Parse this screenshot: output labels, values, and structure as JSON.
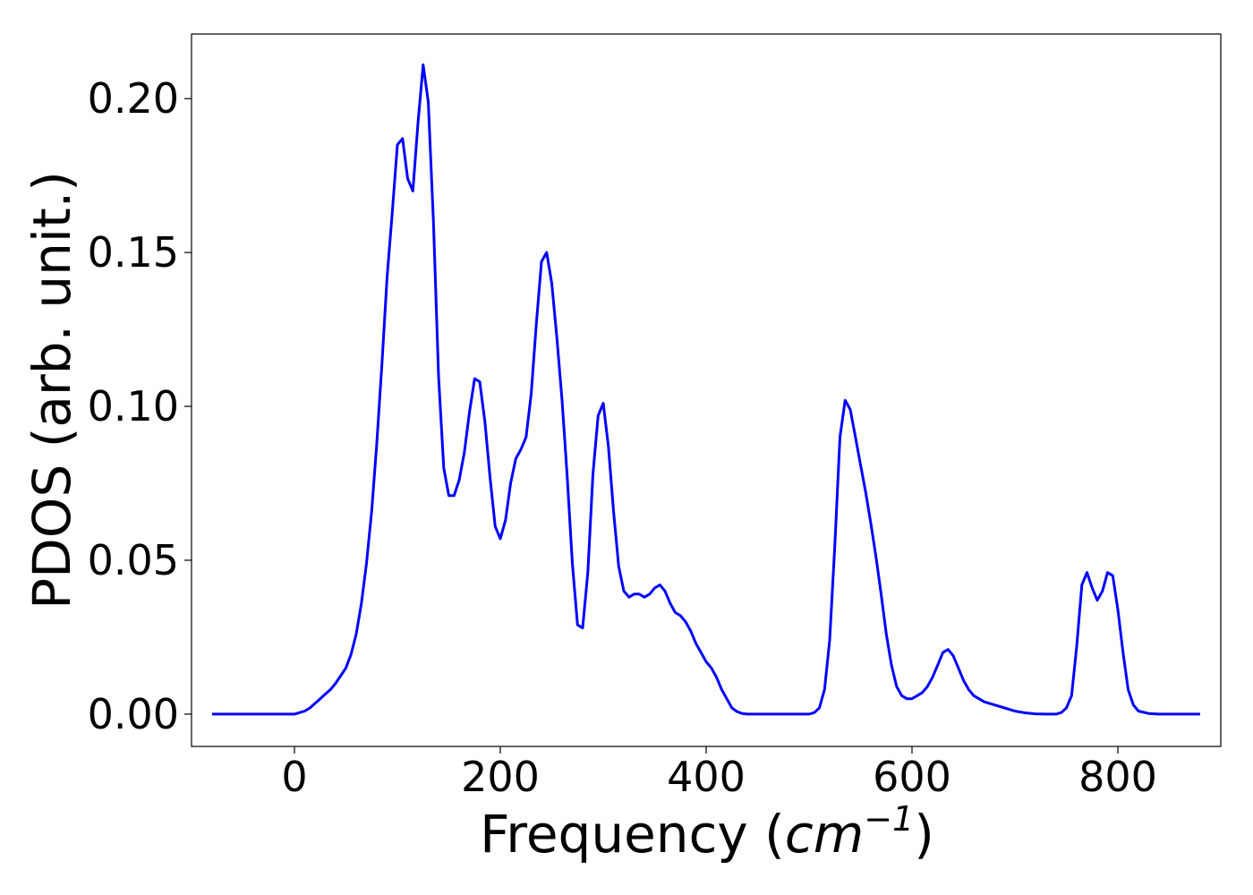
{
  "chart_data": {
    "type": "line",
    "title": "",
    "xlabel": "Frequency (",
    "xlabel_math": "cm",
    "xlabel_exponent": "−1",
    "xlabel_close": ")",
    "ylabel": "PDOS (arb. unit.)",
    "xlim": [
      -100,
      900
    ],
    "ylim": [
      -0.0105,
      0.221
    ],
    "xticks": [
      0,
      200,
      400,
      600,
      800
    ],
    "xtick_labels": [
      "0",
      "200",
      "400",
      "600",
      "800"
    ],
    "yticks": [
      0.0,
      0.05,
      0.1,
      0.15,
      0.2
    ],
    "ytick_labels": [
      "0.00",
      "0.05",
      "0.10",
      "0.15",
      "0.20"
    ],
    "grid": false,
    "legend": "none",
    "series": [
      {
        "color": "#0000ff",
        "x": [
          -80,
          0,
          5,
          10,
          15,
          20,
          25,
          30,
          35,
          40,
          45,
          50,
          55,
          60,
          65,
          70,
          75,
          80,
          85,
          90,
          95,
          100,
          105,
          110,
          115,
          120,
          125,
          130,
          135,
          140,
          145,
          150,
          155,
          160,
          165,
          170,
          175,
          180,
          185,
          190,
          195,
          200,
          205,
          210,
          215,
          220,
          225,
          230,
          235,
          240,
          245,
          250,
          255,
          260,
          265,
          270,
          275,
          280,
          285,
          290,
          295,
          300,
          305,
          310,
          315,
          320,
          325,
          330,
          335,
          340,
          345,
          350,
          355,
          360,
          365,
          370,
          375,
          380,
          385,
          390,
          395,
          400,
          405,
          410,
          415,
          420,
          425,
          430,
          435,
          440,
          450,
          460,
          480,
          500,
          505,
          510,
          515,
          520,
          525,
          530,
          535,
          540,
          545,
          550,
          555,
          560,
          565,
          570,
          575,
          580,
          585,
          590,
          595,
          600,
          605,
          610,
          615,
          620,
          625,
          630,
          635,
          640,
          645,
          650,
          655,
          660,
          665,
          670,
          680,
          690,
          700,
          710,
          720,
          730,
          740,
          745,
          750,
          755,
          760,
          765,
          770,
          775,
          780,
          785,
          790,
          795,
          800,
          805,
          810,
          815,
          820,
          830,
          840,
          860,
          880
        ],
        "y": [
          0.0,
          0.0,
          0.0005,
          0.001,
          0.002,
          0.0035,
          0.005,
          0.0065,
          0.008,
          0.01,
          0.0125,
          0.015,
          0.0195,
          0.026,
          0.036,
          0.049,
          0.066,
          0.088,
          0.114,
          0.142,
          0.163,
          0.185,
          0.187,
          0.174,
          0.17,
          0.192,
          0.211,
          0.199,
          0.16,
          0.11,
          0.08,
          0.071,
          0.071,
          0.076,
          0.085,
          0.098,
          0.109,
          0.108,
          0.095,
          0.077,
          0.061,
          0.057,
          0.063,
          0.075,
          0.083,
          0.086,
          0.09,
          0.104,
          0.127,
          0.147,
          0.15,
          0.14,
          0.122,
          0.102,
          0.077,
          0.049,
          0.029,
          0.028,
          0.046,
          0.078,
          0.097,
          0.101,
          0.087,
          0.066,
          0.048,
          0.04,
          0.038,
          0.039,
          0.039,
          0.038,
          0.039,
          0.041,
          0.042,
          0.04,
          0.036,
          0.033,
          0.032,
          0.03,
          0.027,
          0.023,
          0.02,
          0.017,
          0.015,
          0.012,
          0.008,
          0.005,
          0.002,
          0.0008,
          0.0002,
          0.0,
          0.0,
          0.0,
          0.0,
          0.0,
          0.0005,
          0.002,
          0.008,
          0.024,
          0.055,
          0.09,
          0.102,
          0.099,
          0.09,
          0.081,
          0.072,
          0.062,
          0.051,
          0.039,
          0.026,
          0.016,
          0.009,
          0.006,
          0.005,
          0.005,
          0.006,
          0.007,
          0.009,
          0.012,
          0.016,
          0.02,
          0.021,
          0.019,
          0.015,
          0.011,
          0.008,
          0.006,
          0.005,
          0.004,
          0.003,
          0.002,
          0.001,
          0.0004,
          0.0001,
          0.0,
          0.0,
          0.0005,
          0.002,
          0.006,
          0.022,
          0.042,
          0.046,
          0.041,
          0.037,
          0.04,
          0.046,
          0.045,
          0.034,
          0.02,
          0.008,
          0.003,
          0.001,
          0.0002,
          0.0,
          0.0,
          0.0
        ]
      }
    ]
  }
}
